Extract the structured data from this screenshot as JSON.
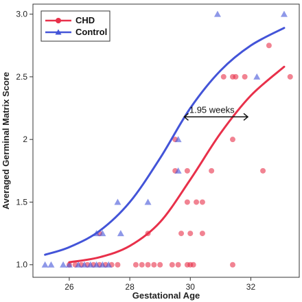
{
  "chart_data": {
    "type": "scatter",
    "xlabel": "Gestational Age",
    "ylabel": "Averaged Germinal Matrix Score",
    "xlim": [
      24.8,
      33.6
    ],
    "ylim": [
      0.9,
      3.08
    ],
    "x_ticks": [
      26,
      28,
      30,
      32
    ],
    "y_ticks": [
      1.0,
      1.5,
      2.0,
      2.5,
      3.0
    ],
    "x_tick_labels": [
      "26",
      "28",
      "30",
      "32"
    ],
    "y_tick_labels": [
      "1.0",
      "1.5",
      "2",
      "2.5",
      "3.0"
    ],
    "grid": false,
    "legend_position": "top-left",
    "series": [
      {
        "name": "CHD",
        "color": "#e8304a",
        "marker": "circle",
        "points": [
          [
            26.0,
            1.0
          ],
          [
            26.2,
            1.0
          ],
          [
            26.4,
            1.0
          ],
          [
            26.6,
            1.0
          ],
          [
            26.8,
            1.0
          ],
          [
            27.0,
            1.0
          ],
          [
            27.2,
            1.0
          ],
          [
            27.4,
            1.0
          ],
          [
            27.6,
            1.0
          ],
          [
            28.2,
            1.0
          ],
          [
            28.4,
            1.0
          ],
          [
            28.6,
            1.0
          ],
          [
            28.8,
            1.0
          ],
          [
            29.0,
            1.0
          ],
          [
            29.4,
            1.0
          ],
          [
            29.6,
            1.0
          ],
          [
            29.9,
            1.0
          ],
          [
            30.0,
            1.0
          ],
          [
            30.1,
            1.0
          ],
          [
            31.4,
            1.0
          ],
          [
            27.0,
            1.25
          ],
          [
            28.6,
            1.25
          ],
          [
            29.7,
            1.25
          ],
          [
            30.0,
            1.25
          ],
          [
            30.4,
            1.25
          ],
          [
            29.9,
            1.5
          ],
          [
            30.2,
            1.5
          ],
          [
            30.4,
            1.5
          ],
          [
            29.5,
            1.75
          ],
          [
            29.9,
            1.75
          ],
          [
            30.7,
            1.75
          ],
          [
            32.4,
            1.75
          ],
          [
            29.5,
            2.0
          ],
          [
            31.4,
            2.0
          ],
          [
            31.1,
            2.5
          ],
          [
            31.4,
            2.5
          ],
          [
            31.5,
            2.5
          ],
          [
            31.8,
            2.5
          ],
          [
            33.3,
            2.5
          ],
          [
            32.6,
            2.75
          ]
        ],
        "curve_x": [
          26,
          27,
          28,
          29,
          30,
          31,
          32,
          33.1
        ],
        "curve_y": [
          1.02,
          1.06,
          1.15,
          1.34,
          1.68,
          2.05,
          2.35,
          2.58
        ]
      },
      {
        "name": "Control",
        "color": "#4354d8",
        "marker": "triangle",
        "points": [
          [
            25.2,
            1.0
          ],
          [
            25.4,
            1.0
          ],
          [
            25.8,
            1.0
          ],
          [
            26.0,
            1.0
          ],
          [
            26.3,
            1.0
          ],
          [
            26.5,
            1.0
          ],
          [
            26.7,
            1.0
          ],
          [
            26.9,
            1.0
          ],
          [
            27.1,
            1.0
          ],
          [
            27.3,
            1.0
          ],
          [
            26.9,
            1.25
          ],
          [
            27.1,
            1.25
          ],
          [
            27.7,
            1.25
          ],
          [
            27.6,
            1.5
          ],
          [
            28.6,
            1.5
          ],
          [
            29.6,
            1.75
          ],
          [
            29.6,
            2.0
          ],
          [
            32.2,
            2.5
          ],
          [
            30.9,
            3.0
          ],
          [
            33.1,
            3.0
          ]
        ],
        "curve_x": [
          25.2,
          26,
          27,
          28,
          29,
          30,
          31,
          32,
          33.1
        ],
        "curve_y": [
          1.08,
          1.14,
          1.27,
          1.5,
          1.85,
          2.25,
          2.55,
          2.75,
          2.89
        ]
      }
    ],
    "annotations": [
      {
        "text": "1.95 weeks",
        "arrow_from": [
          29.8,
          2.18
        ],
        "arrow_to": [
          31.9,
          2.18
        ]
      }
    ]
  }
}
